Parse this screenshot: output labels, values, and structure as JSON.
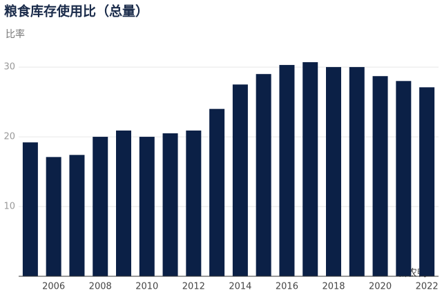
{
  "chart_data": {
    "type": "bar",
    "title": "粮食库存使用比（总量）",
    "y_label": "比率",
    "watermark": "新农鸭",
    "categories": [
      null,
      "2006",
      null,
      "2008",
      null,
      "2010",
      null,
      "2012",
      null,
      "2014",
      null,
      "2016",
      null,
      "2018",
      null,
      "2020",
      null,
      "2022"
    ],
    "values": [
      19.2,
      17.1,
      17.4,
      20.0,
      20.9,
      20.0,
      20.5,
      20.9,
      24.0,
      27.5,
      29.0,
      30.3,
      30.7,
      30.0,
      30.0,
      28.7,
      28.0,
      27.1
    ],
    "color": "#0b2046",
    "ylim": [
      0,
      31
    ],
    "yticks": [
      10,
      20,
      30
    ],
    "grid": true
  }
}
